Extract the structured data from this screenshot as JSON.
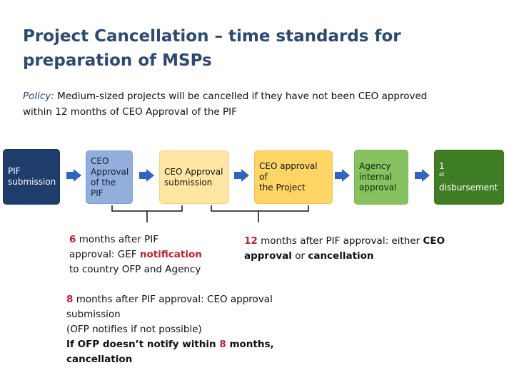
{
  "title": {
    "line1": "Project Cancellation – time standards for",
    "line2": "preparation of MSPs"
  },
  "policy": {
    "label": "Policy:",
    "text1": " Medium-sized projects will be cancelled if they have not been CEO approved",
    "text2": "within 12 months of CEO Approval of the PIF"
  },
  "steps": [
    {
      "lines": [
        "PIF",
        "submission"
      ]
    },
    {
      "lines": [
        "CEO",
        "Approval",
        "of the",
        "PIF"
      ]
    },
    {
      "lines": [
        "CEO Approval",
        "submission"
      ]
    },
    {
      "lines": [
        "CEO approval of",
        "the Project"
      ]
    },
    {
      "lines": [
        "Agency",
        "internal",
        "approval"
      ]
    },
    {
      "num": "1",
      "sup": "st",
      "line2": "disbursement"
    }
  ],
  "notes": {
    "six": {
      "num": "6",
      "t1": " months after PIF",
      "t2": "approval: GEF ",
      "highlight": "notification",
      "t3": "to country OFP and Agency"
    },
    "twelve": {
      "num": "12",
      "t1": " months after PIF approval: either ",
      "b1": "CEO",
      "b2": "approval",
      "t2": " or ",
      "b3": "cancellation"
    },
    "eight": {
      "num": "8",
      "t1": " months after PIF approval: CEO approval",
      "t2": "submission",
      "t3": "(OFP notifies if not possible)",
      "t4a": "If OFP doesn’t notify within ",
      "num2": "8",
      "t4b": " months,",
      "t5": "cancellation"
    }
  },
  "colors": {
    "title": "#2a4a72",
    "arrow": "#2f63c4",
    "highlight": "#c0202c"
  }
}
